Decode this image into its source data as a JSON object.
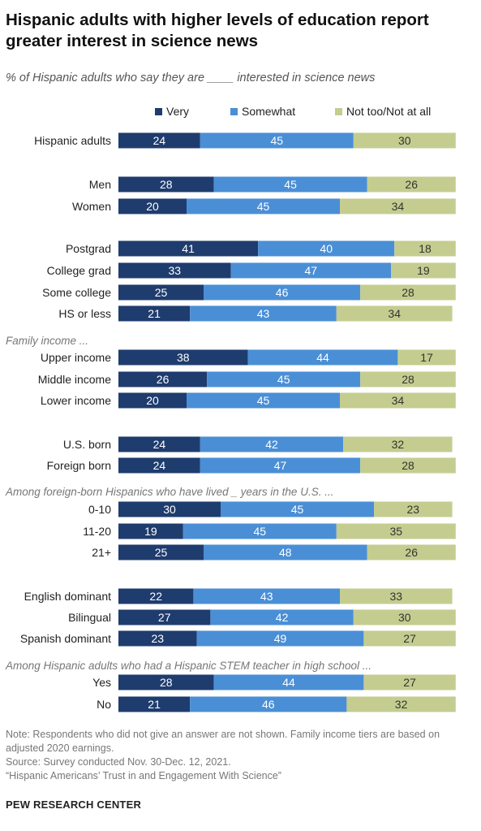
{
  "title": "Hispanic adults with higher levels of education report greater interest in science news",
  "subtitle": "% of Hispanic adults who say they are ____ interested in science news",
  "colors": {
    "very": "#1f3c6e",
    "somewhat": "#4a8fd6",
    "not": "#c4cd8f"
  },
  "notes": {
    "note": "Note: Respondents who did not give an answer are not shown.  Family income tiers are based on adjusted 2020 earnings.",
    "source": "Source: Survey conducted Nov. 30-Dec. 12, 2021.",
    "report": "“Hispanic Americans’ Trust in and Engagement With Science”"
  },
  "brand": "PEW RESEARCH CENTER",
  "chart_data": {
    "type": "bar",
    "orientation": "horizontal",
    "stacked": true,
    "series": [
      {
        "name": "Very",
        "color": "#1f3c6e"
      },
      {
        "name": "Somewhat",
        "color": "#4a8fd6"
      },
      {
        "name": "Not too/Not at all",
        "color": "#c4cd8f"
      }
    ],
    "section_labels": [
      "Family income ...",
      "Among foreign-born Hispanics who have lived _ years in the U.S. ...",
      "Among Hispanic adults who had a Hispanic STEM teacher in high school ..."
    ],
    "rows": [
      {
        "label": "Hispanic adults",
        "values": [
          24,
          45,
          30
        ]
      },
      {
        "label": "Men",
        "values": [
          28,
          45,
          26
        ]
      },
      {
        "label": "Women",
        "values": [
          20,
          45,
          34
        ]
      },
      {
        "label": "Postgrad",
        "values": [
          41,
          40,
          18
        ]
      },
      {
        "label": "College grad",
        "values": [
          33,
          47,
          19
        ]
      },
      {
        "label": "Some college",
        "values": [
          25,
          46,
          28
        ]
      },
      {
        "label": "HS or less",
        "values": [
          21,
          43,
          34
        ]
      },
      {
        "label": "Upper income",
        "values": [
          38,
          44,
          17
        ]
      },
      {
        "label": "Middle income",
        "values": [
          26,
          45,
          28
        ]
      },
      {
        "label": "Lower income",
        "values": [
          20,
          45,
          34
        ]
      },
      {
        "label": "U.S. born",
        "values": [
          24,
          42,
          32
        ]
      },
      {
        "label": "Foreign born",
        "values": [
          24,
          47,
          28
        ]
      },
      {
        "label": "0-10",
        "values": [
          30,
          45,
          23
        ]
      },
      {
        "label": "11-20",
        "values": [
          19,
          45,
          35
        ]
      },
      {
        "label": "21+",
        "values": [
          25,
          48,
          26
        ]
      },
      {
        "label": "English dominant",
        "values": [
          22,
          43,
          33
        ]
      },
      {
        "label": "Bilingual",
        "values": [
          27,
          42,
          30
        ]
      },
      {
        "label": "Spanish dominant",
        "values": [
          23,
          49,
          27
        ]
      },
      {
        "label": "Yes",
        "values": [
          28,
          44,
          27
        ]
      },
      {
        "label": "No",
        "values": [
          21,
          46,
          32
        ]
      }
    ]
  }
}
